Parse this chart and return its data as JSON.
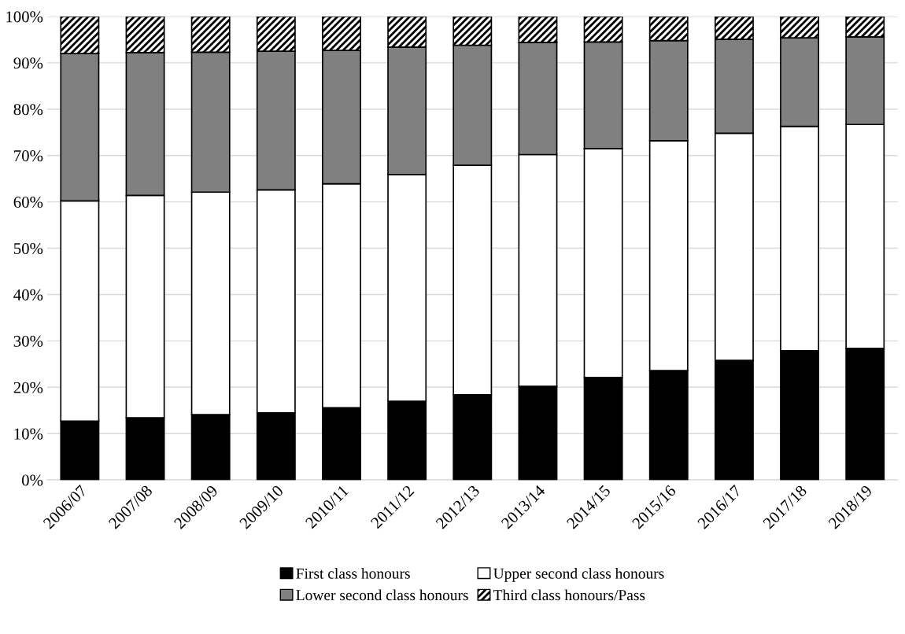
{
  "chart_data": {
    "type": "bar",
    "stacked": true,
    "categories": [
      "2006/07",
      "2007/08",
      "2008/09",
      "2009/10",
      "2010/11",
      "2011/12",
      "2012/13",
      "2013/14",
      "2014/15",
      "2015/16",
      "2016/17",
      "2017/18",
      "2018/19"
    ],
    "series": [
      {
        "name": "First class honours",
        "color": "#000000",
        "values": [
          12.7,
          13.4,
          14.1,
          14.5,
          15.6,
          17.0,
          18.4,
          20.2,
          22.1,
          23.6,
          25.8,
          27.9,
          28.4
        ]
      },
      {
        "name": "Upper second class honours",
        "color": "#ffffff",
        "values": [
          47.5,
          48.0,
          48.0,
          48.1,
          48.3,
          48.9,
          49.5,
          50.0,
          49.4,
          49.6,
          49.0,
          48.4,
          48.3
        ]
      },
      {
        "name": "Lower second class honours",
        "color": "#808080",
        "values": [
          31.8,
          30.8,
          30.2,
          29.9,
          28.8,
          27.5,
          25.9,
          24.2,
          23.0,
          21.6,
          20.3,
          19.1,
          18.9
        ]
      },
      {
        "name": "Third class honours/Pass",
        "color": "#000000",
        "values": [
          8.0,
          7.8,
          7.7,
          7.5,
          7.3,
          6.6,
          6.2,
          5.6,
          5.5,
          5.2,
          4.9,
          4.6,
          4.4
        ]
      }
    ],
    "ylim": [
      0,
      100
    ],
    "yticks": [
      {
        "value": 0,
        "label": "0%"
      },
      {
        "value": 10,
        "label": "10%"
      },
      {
        "value": 20,
        "label": "20%"
      },
      {
        "value": 30,
        "label": "30%"
      },
      {
        "value": 40,
        "label": "40%"
      },
      {
        "value": 50,
        "label": "50%"
      },
      {
        "value": 60,
        "label": "60%"
      },
      {
        "value": 70,
        "label": "70%"
      },
      {
        "value": 80,
        "label": "80%"
      },
      {
        "value": 90,
        "label": "90%"
      },
      {
        "value": 100,
        "label": "100%"
      }
    ],
    "grid": "y",
    "legend": "bottom"
  }
}
